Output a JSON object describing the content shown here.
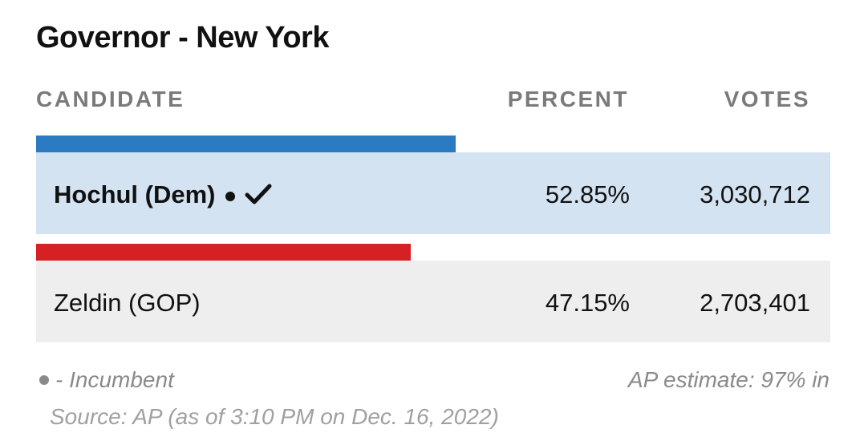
{
  "title": "Governor - New York",
  "headers": {
    "candidate": "CANDIDATE",
    "percent": "PERCENT",
    "votes": "VOTES"
  },
  "chart_data": {
    "type": "bar",
    "title": "Governor - New York",
    "categories": [
      "Hochul (Dem)",
      "Zeldin (GOP)"
    ],
    "values": [
      52.85,
      47.15
    ],
    "votes": [
      3030712,
      2703401
    ],
    "series": [
      {
        "values": [
          52.85,
          47.15
        ]
      }
    ],
    "xlabel": "",
    "ylabel": "",
    "colors": [
      "#2a7bc1",
      "#d62024"
    ],
    "row_backgrounds": [
      "#d3e3f2",
      "#eeeeee"
    ]
  },
  "rows": [
    {
      "name": "Hochul (Dem)",
      "percent": "52.85%",
      "votes": "3,030,712",
      "incumbent": true,
      "winner": true
    },
    {
      "name": "Zeldin (GOP)",
      "percent": "47.15%",
      "votes": "2,703,401",
      "incumbent": false,
      "winner": false
    }
  ],
  "footer": {
    "incumbent_legend": "- Incumbent",
    "estimate": "AP estimate: 97% in",
    "source": "Source: AP (as of 3:10 PM on Dec. 16, 2022)"
  },
  "icons": {
    "incumbent": "bullet-icon",
    "winner": "checkmark-icon"
  }
}
